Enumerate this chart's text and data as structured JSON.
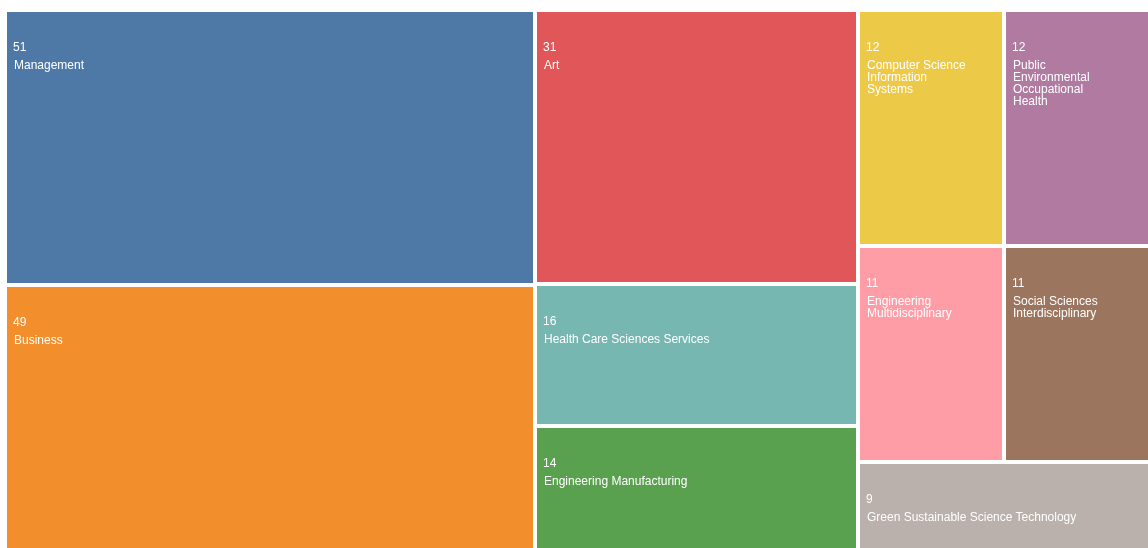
{
  "chart_data": {
    "type": "other",
    "categories": [
      "Management",
      "Business",
      "Art",
      "Health Care Sciences Services",
      "Engineering Manufacturing",
      "Computer Science Information Systems",
      "Public Environmental Occupational Health",
      "Engineering Multidisciplinary",
      "Social Sciences Interdisciplinary",
      "Green Sustainable Science Technology"
    ],
    "values": [
      51,
      49,
      31,
      16,
      14,
      12,
      12,
      11,
      11,
      9
    ],
    "colors": [
      "#4e79a7",
      "#f28e2b",
      "#e15759",
      "#76b7b2",
      "#59a14f",
      "#edc948",
      "#b07aa1",
      "#ff9da7",
      "#9c755f",
      "#bab0ac"
    ],
    "data_labels": true
  }
}
